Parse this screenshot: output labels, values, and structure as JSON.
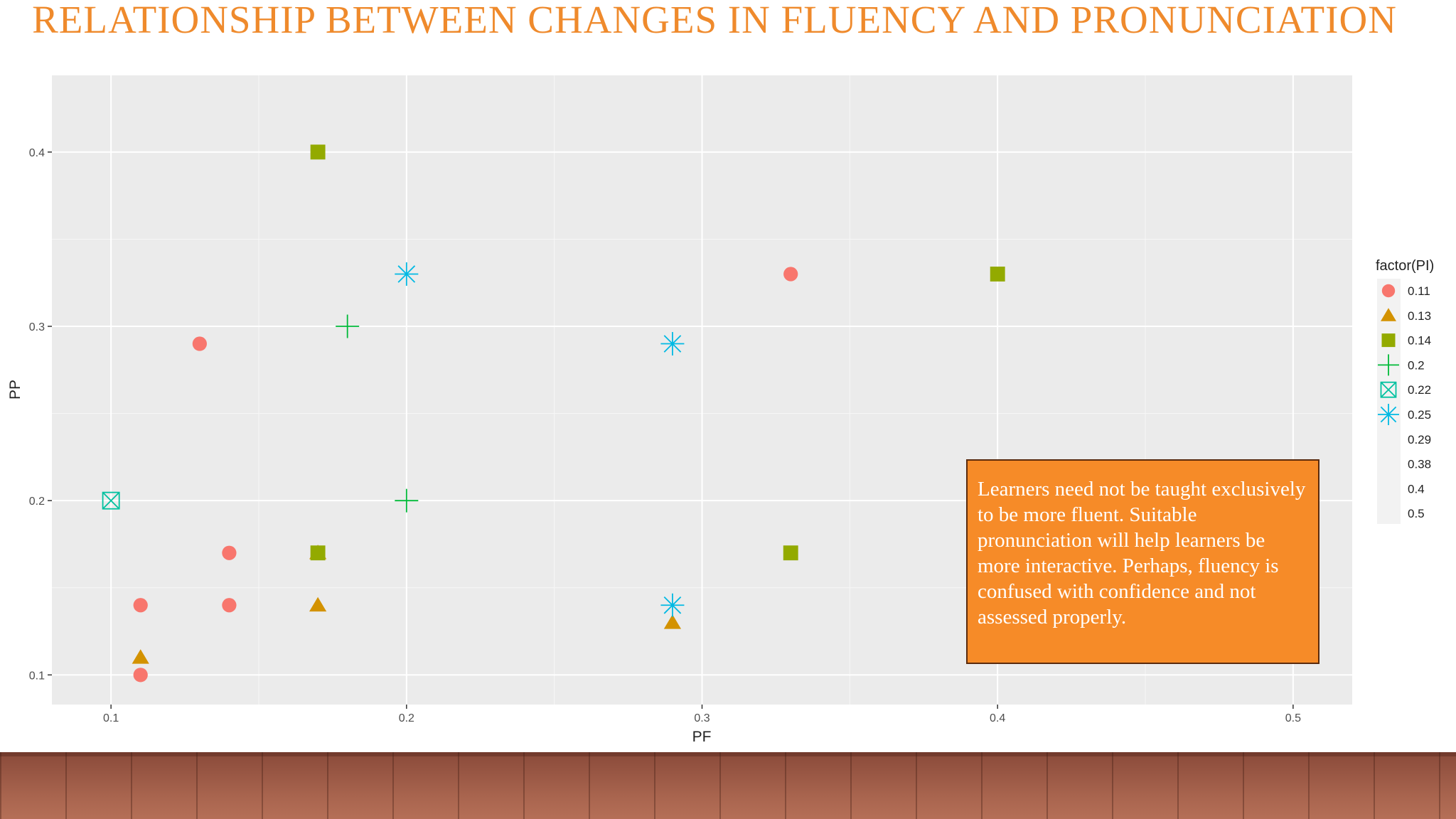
{
  "slide": {
    "title": "RELATIONSHIP BETWEEN CHANGES IN FLUENCY AND PRONUNCIATION",
    "callout": "Learners need not be taught exclusively to be more fluent. Suitable pronunciation will help learners be more interactive. Perhaps, fluency is confused with confidence and not assessed properly.",
    "title_color": "#ef8a2c",
    "callout_color": "#f68b28"
  },
  "chart_data": {
    "type": "scatter",
    "title": "",
    "xlabel": "PF",
    "ylabel": "PP",
    "xlim": [
      0.08,
      0.52
    ],
    "ylim": [
      0.083,
      0.444
    ],
    "xticks": [
      0.1,
      0.2,
      0.3,
      0.4,
      0.5
    ],
    "xtick_labels": [
      "0.1",
      "0.2",
      "0.3",
      "0.4",
      "0.5"
    ],
    "yticks": [
      0.1,
      0.2,
      0.3,
      0.4
    ],
    "ytick_labels": [
      "0.1",
      "0.2",
      "0.3",
      "0.4"
    ],
    "grid": true,
    "panel_background": "#ebebeb",
    "legend": {
      "title": "factor(PI)",
      "position": "right",
      "entries": [
        {
          "label": "0.11",
          "shape": "circle",
          "color": "#f8766d"
        },
        {
          "label": "0.13",
          "shape": "triangle",
          "color": "#d39200"
        },
        {
          "label": "0.14",
          "shape": "square",
          "color": "#93aa00"
        },
        {
          "label": "0.2",
          "shape": "plus",
          "color": "#00ba38"
        },
        {
          "label": "0.22",
          "shape": "boxed-x",
          "color": "#00c19f"
        },
        {
          "label": "0.25",
          "shape": "asterisk",
          "color": "#00b9e3"
        },
        {
          "label": "0.29",
          "shape": "none",
          "color": ""
        },
        {
          "label": "0.38",
          "shape": "none",
          "color": ""
        },
        {
          "label": "0.4",
          "shape": "none",
          "color": ""
        },
        {
          "label": "0.5",
          "shape": "none",
          "color": ""
        }
      ]
    },
    "series": [
      {
        "name": "0.11",
        "shape": "circle",
        "color": "#f8766d",
        "points": [
          [
            0.13,
            0.29
          ],
          [
            0.14,
            0.17
          ],
          [
            0.14,
            0.14
          ],
          [
            0.11,
            0.14
          ],
          [
            0.11,
            0.1
          ],
          [
            0.33,
            0.33
          ]
        ]
      },
      {
        "name": "0.13",
        "shape": "triangle",
        "color": "#d39200",
        "points": [
          [
            0.17,
            0.17
          ],
          [
            0.17,
            0.14
          ],
          [
            0.11,
            0.11
          ],
          [
            0.29,
            0.13
          ]
        ]
      },
      {
        "name": "0.14",
        "shape": "square",
        "color": "#93aa00",
        "points": [
          [
            0.17,
            0.4
          ],
          [
            0.4,
            0.33
          ],
          [
            0.33,
            0.17
          ],
          [
            0.17,
            0.17
          ]
        ]
      },
      {
        "name": "0.2",
        "shape": "plus",
        "color": "#00ba38",
        "points": [
          [
            0.18,
            0.3
          ],
          [
            0.2,
            0.2
          ]
        ]
      },
      {
        "name": "0.22",
        "shape": "boxed-x",
        "color": "#00c19f",
        "points": [
          [
            0.1,
            0.2
          ]
        ]
      },
      {
        "name": "0.25",
        "shape": "asterisk",
        "color": "#00b9e3",
        "points": [
          [
            0.2,
            0.33
          ],
          [
            0.29,
            0.29
          ],
          [
            0.29,
            0.14
          ]
        ]
      }
    ]
  }
}
